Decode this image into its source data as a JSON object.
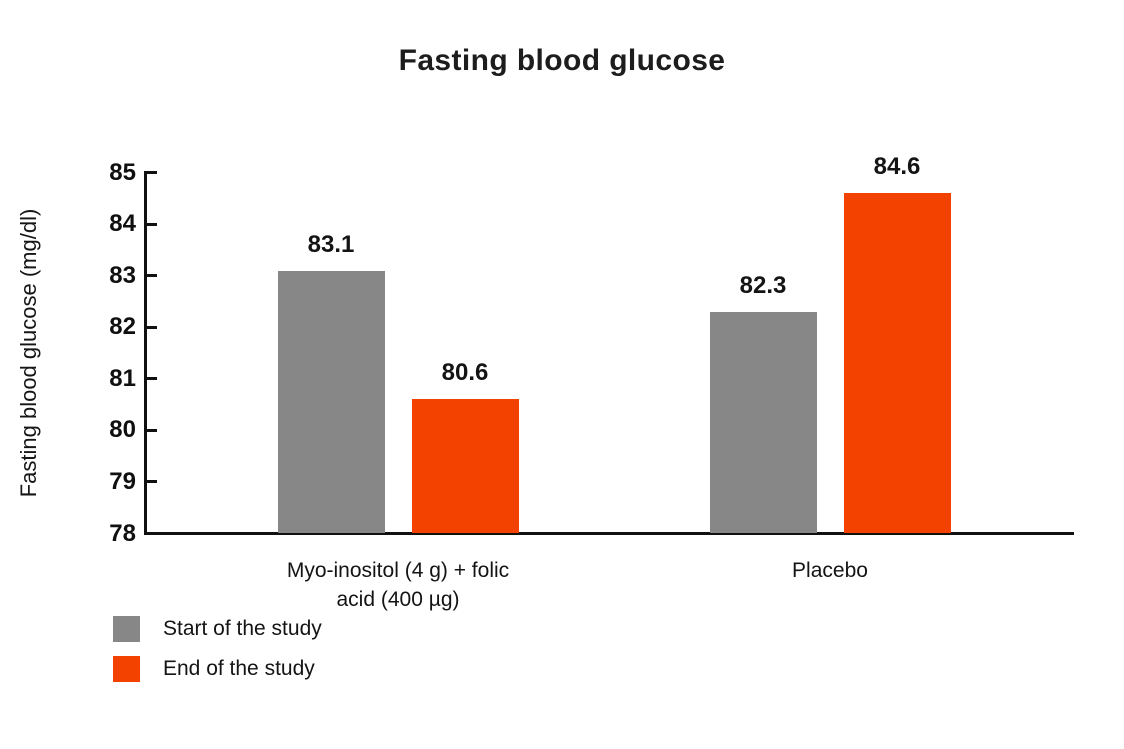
{
  "chart_data": {
    "type": "bar",
    "title": "Fasting blood glucose",
    "ylabel": "Fasting blood glucose (mg/dl)",
    "xlabel": "",
    "categories": [
      "Myo-inositol (4 g) + folic\nacid (400 µg)",
      "Placebo"
    ],
    "series": [
      {
        "name": "Start of the study",
        "color": "#878787",
        "values": [
          83.1,
          82.3
        ]
      },
      {
        "name": "End of the study",
        "color": "#F34100",
        "values": [
          80.6,
          84.6
        ]
      }
    ],
    "ylim": [
      78,
      85
    ],
    "yticks": [
      78,
      79,
      80,
      81,
      82,
      83,
      84,
      85
    ],
    "value_label_decimals": 1,
    "bar_value_labels": true,
    "grid": false,
    "legend_position": "bottom-left",
    "axis_color": "#111111",
    "text_color": "#141414",
    "background_color": "#ffffff"
  }
}
